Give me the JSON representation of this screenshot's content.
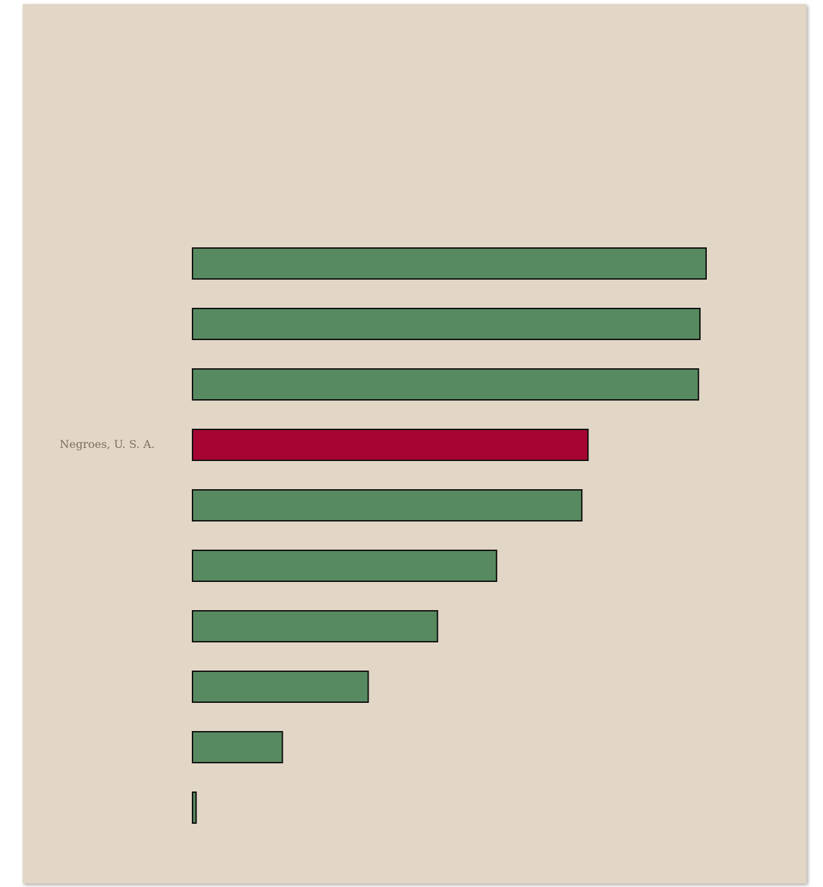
{
  "page": {
    "background_color": "#e2d6c6"
  },
  "chart_data": {
    "type": "bar",
    "orientation": "horizontal",
    "categories": [
      "",
      "",
      "",
      "Negroes, U. S. A.",
      "",
      "",
      "",
      "",
      "",
      ""
    ],
    "values": [
      100,
      98.8,
      98.5,
      77,
      75.8,
      59.2,
      47.7,
      34.2,
      17.5,
      0.7
    ],
    "highlight_index": 3,
    "xlim": [
      0,
      100
    ],
    "title": "",
    "xlabel": "",
    "ylabel": "",
    "grid": false,
    "colors": {
      "bar": "#578a60",
      "highlight": "#a60533",
      "outline": "#111111",
      "label": "#7a6e62"
    }
  }
}
